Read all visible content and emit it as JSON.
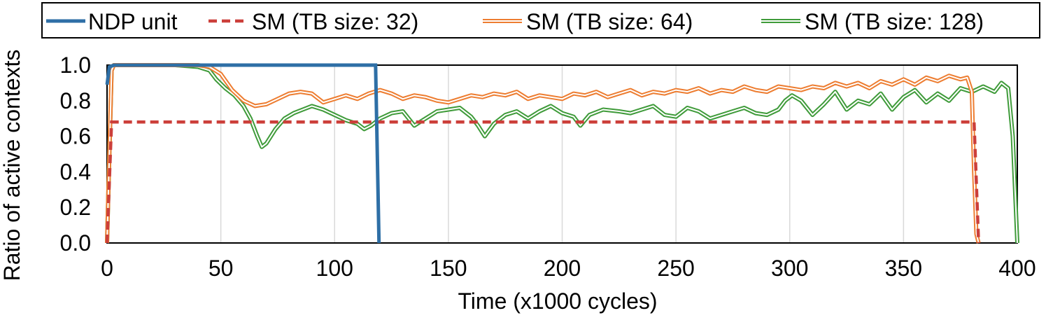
{
  "chart_data": {
    "type": "line",
    "title": "",
    "xlabel": "Time (x1000 cycles)",
    "ylabel": "Ratio of active contexts",
    "xlim": [
      0,
      400
    ],
    "ylim": [
      0,
      1.0
    ],
    "x_ticks": [
      0,
      50,
      100,
      150,
      200,
      250,
      300,
      350,
      400
    ],
    "x_tick_labels": [
      "0",
      "50",
      "100",
      "150",
      "200",
      "250",
      "300",
      "350",
      "400"
    ],
    "y_ticks": [
      0,
      0.2,
      0.4,
      0.6,
      0.8,
      1.0
    ],
    "y_tick_labels": [
      "0.0",
      "0.2",
      "0.4",
      "0.6",
      "0.8",
      "1.0"
    ],
    "grid": "vertical",
    "legend_position": "top",
    "series": [
      {
        "name": "NDP unit",
        "color": "#2e6fa6",
        "style": "solid",
        "x": [
          0,
          1,
          3,
          118,
          119.5
        ],
        "y": [
          0.89,
          0.99,
          1.0,
          1.0,
          0.0
        ]
      },
      {
        "name": "SM (TB size: 32)",
        "color": "#cc3f3a",
        "style": "dashed",
        "x": [
          0,
          2,
          4,
          381,
          383
        ],
        "y": [
          0.0,
          0.68,
          0.68,
          0.68,
          0.0
        ]
      },
      {
        "name": "SM (TB size: 64)",
        "color": "#ed7d31",
        "style": "double",
        "x": [
          0,
          1,
          2,
          3,
          10,
          20,
          30,
          40,
          45,
          50,
          55,
          60,
          65,
          70,
          75,
          80,
          85,
          90,
          95,
          100,
          105,
          110,
          115,
          120,
          125,
          130,
          135,
          140,
          145,
          150,
          155,
          160,
          165,
          170,
          175,
          180,
          185,
          190,
          195,
          200,
          205,
          210,
          215,
          220,
          225,
          230,
          235,
          240,
          245,
          250,
          255,
          260,
          265,
          270,
          275,
          280,
          285,
          290,
          295,
          300,
          305,
          310,
          315,
          320,
          325,
          330,
          335,
          340,
          345,
          350,
          355,
          360,
          365,
          370,
          375,
          378,
          380,
          381,
          382,
          383
        ],
        "y": [
          0.0,
          0.5,
          0.97,
          1.0,
          1.0,
          1.0,
          1.0,
          1.0,
          0.99,
          0.95,
          0.86,
          0.8,
          0.77,
          0.78,
          0.81,
          0.84,
          0.85,
          0.84,
          0.79,
          0.81,
          0.83,
          0.81,
          0.84,
          0.86,
          0.84,
          0.81,
          0.83,
          0.82,
          0.8,
          0.79,
          0.81,
          0.83,
          0.82,
          0.84,
          0.83,
          0.85,
          0.81,
          0.83,
          0.82,
          0.81,
          0.84,
          0.83,
          0.85,
          0.82,
          0.84,
          0.86,
          0.83,
          0.85,
          0.84,
          0.86,
          0.85,
          0.87,
          0.84,
          0.86,
          0.85,
          0.88,
          0.86,
          0.85,
          0.88,
          0.87,
          0.86,
          0.88,
          0.87,
          0.9,
          0.88,
          0.9,
          0.87,
          0.91,
          0.89,
          0.92,
          0.89,
          0.93,
          0.91,
          0.94,
          0.92,
          0.93,
          0.85,
          0.4,
          0.05,
          0.0
        ]
      },
      {
        "name": "SM (TB size: 128)",
        "color": "#3f9b3a",
        "style": "double",
        "x": [
          0,
          1,
          2,
          3,
          10,
          20,
          30,
          40,
          45,
          48,
          52,
          56,
          60,
          63,
          66,
          68,
          70,
          74,
          78,
          82,
          86,
          90,
          95,
          100,
          105,
          110,
          113,
          116,
          120,
          125,
          130,
          135,
          140,
          145,
          150,
          155,
          160,
          163,
          166,
          170,
          175,
          180,
          185,
          190,
          195,
          200,
          205,
          208,
          212,
          218,
          225,
          230,
          235,
          240,
          245,
          250,
          255,
          260,
          265,
          270,
          275,
          280,
          285,
          290,
          295,
          298,
          301,
          305,
          310,
          315,
          320,
          325,
          330,
          335,
          340,
          345,
          350,
          355,
          360,
          365,
          370,
          375,
          380,
          385,
          390,
          393,
          396,
          398,
          400
        ],
        "y": [
          0.0,
          0.5,
          0.97,
          1.0,
          1.0,
          1.0,
          1.0,
          0.99,
          0.97,
          0.92,
          0.87,
          0.83,
          0.77,
          0.7,
          0.6,
          0.54,
          0.56,
          0.64,
          0.7,
          0.73,
          0.75,
          0.77,
          0.75,
          0.72,
          0.69,
          0.67,
          0.64,
          0.66,
          0.7,
          0.73,
          0.74,
          0.66,
          0.7,
          0.74,
          0.75,
          0.76,
          0.71,
          0.66,
          0.6,
          0.67,
          0.72,
          0.74,
          0.7,
          0.74,
          0.77,
          0.73,
          0.71,
          0.66,
          0.72,
          0.75,
          0.74,
          0.73,
          0.75,
          0.77,
          0.72,
          0.71,
          0.76,
          0.74,
          0.7,
          0.72,
          0.74,
          0.76,
          0.73,
          0.72,
          0.75,
          0.8,
          0.83,
          0.8,
          0.72,
          0.78,
          0.85,
          0.75,
          0.8,
          0.78,
          0.84,
          0.75,
          0.82,
          0.86,
          0.79,
          0.84,
          0.8,
          0.87,
          0.85,
          0.88,
          0.85,
          0.9,
          0.87,
          0.6,
          0.0
        ]
      }
    ]
  }
}
